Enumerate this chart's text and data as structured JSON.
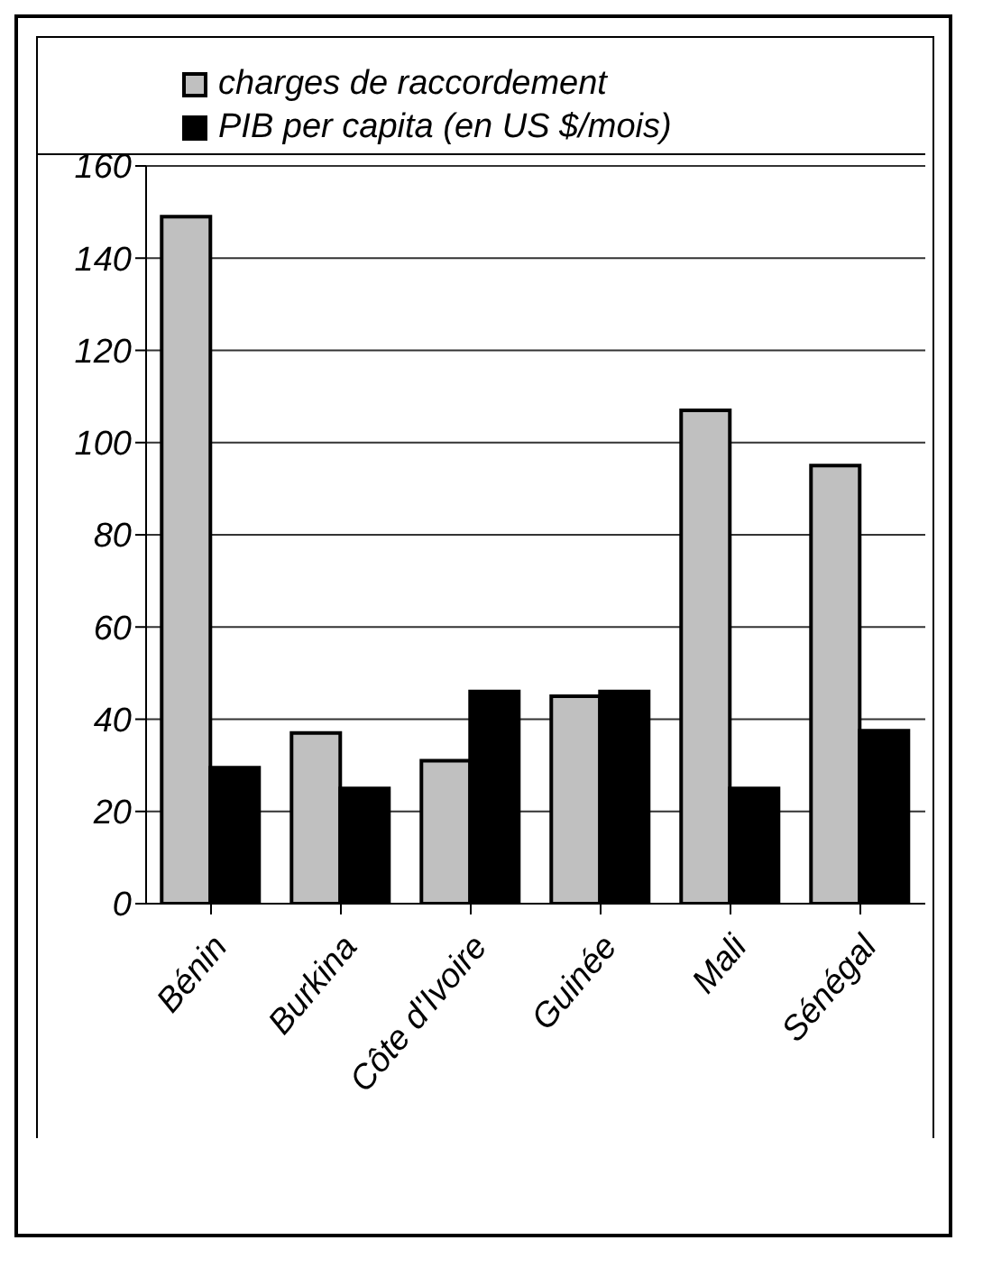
{
  "chart_data": {
    "type": "bar",
    "categories": [
      "Bénin",
      "Burkina",
      "Côte d'Ivoire",
      "Guinée",
      "Mali",
      "Sénégal"
    ],
    "series": [
      {
        "name": "charges de raccordement",
        "color": "#c0c0c0",
        "values": [
          149,
          37,
          31,
          45,
          107,
          95
        ]
      },
      {
        "name": "PIB per capita (en US $/mois)",
        "color": "#000000",
        "values": [
          29.5,
          25,
          46,
          46,
          25,
          37.5
        ]
      }
    ],
    "ylim": [
      0,
      160
    ],
    "yticks": [
      0,
      20,
      40,
      60,
      80,
      100,
      120,
      140,
      160
    ],
    "grid": "y",
    "legend": "top"
  }
}
